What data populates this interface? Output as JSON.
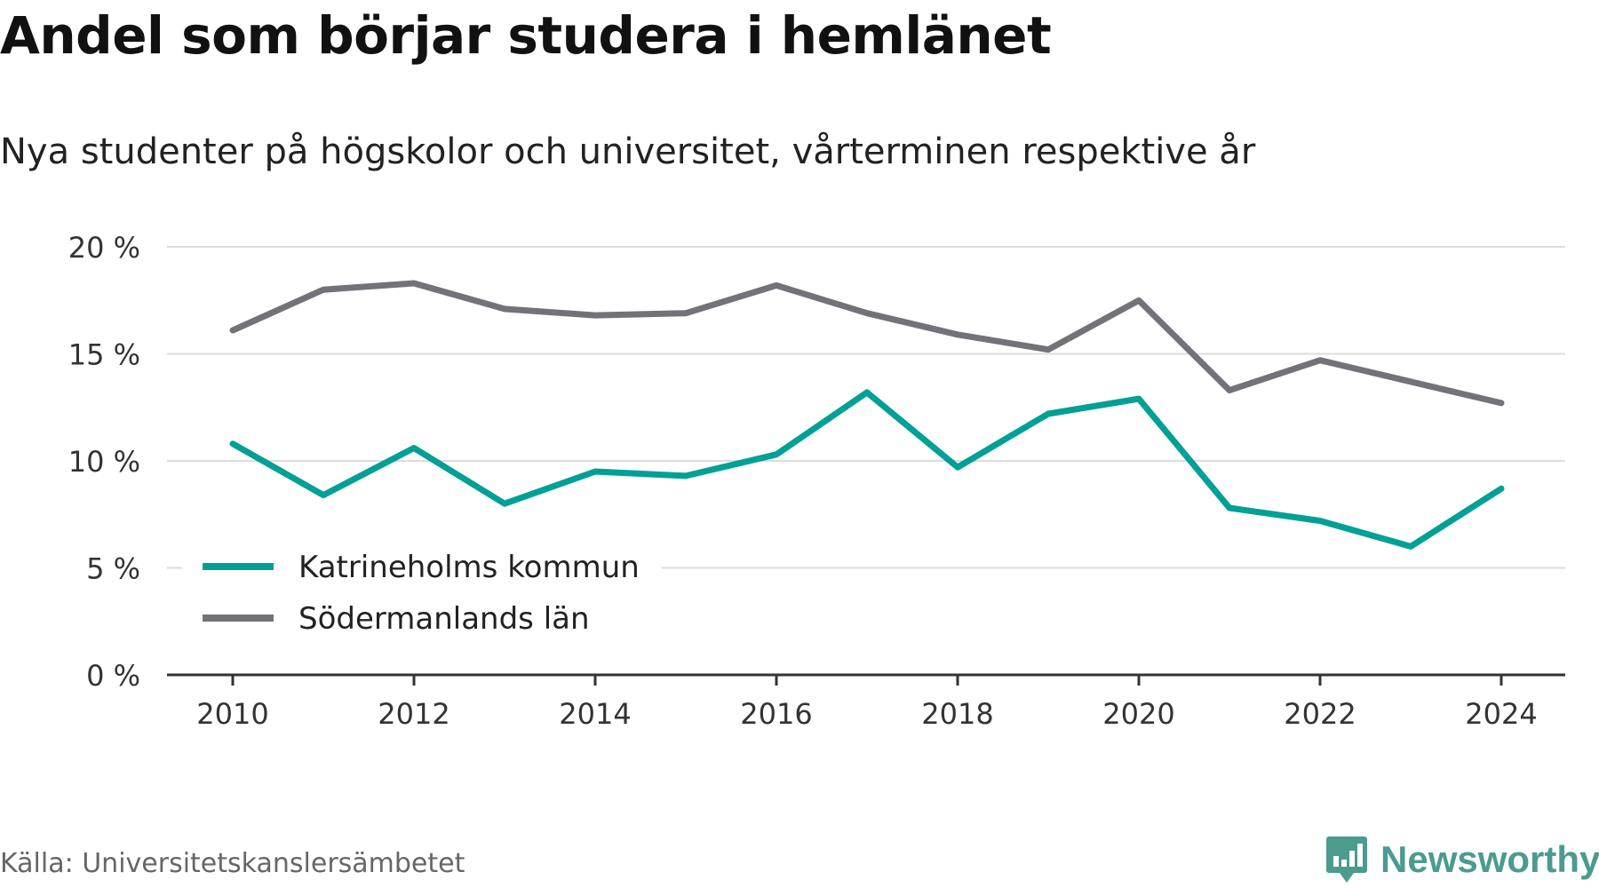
{
  "header": {
    "title": "Andel som börjar studera i hemlänet",
    "subtitle": "Nya studenter på högskolor och universitet, vårterminen respektive år"
  },
  "footer": {
    "source": "Källa: Universitetskanslersämbetet",
    "brand": "Newsworthy",
    "brand_icon": "bar-chart-icon"
  },
  "colors": {
    "katrineholm": "#00a096",
    "sodermanland": "#737278",
    "grid": "#dddddd",
    "axis": "#333333",
    "brand": "#4b9b8f"
  },
  "chart_data": {
    "type": "line",
    "x": [
      2010,
      2011,
      2012,
      2013,
      2014,
      2015,
      2016,
      2017,
      2018,
      2019,
      2020,
      2021,
      2022,
      2023,
      2024
    ],
    "x_tick_labels": [
      "2010",
      "2012",
      "2014",
      "2016",
      "2018",
      "2020",
      "2022",
      "2024"
    ],
    "y_tick_labels": [
      "0 %",
      "5 %",
      "10 %",
      "15 %",
      "20 %"
    ],
    "ylim": [
      0,
      20
    ],
    "grid": true,
    "legend_position": "bottom-left",
    "series": [
      {
        "name": "Katrineholms kommun",
        "key": "katrineholm",
        "values": [
          10.8,
          8.4,
          10.6,
          8.0,
          9.5,
          9.3,
          10.3,
          13.2,
          9.7,
          12.2,
          12.9,
          7.8,
          7.2,
          6.0,
          8.7
        ]
      },
      {
        "name": "Södermanlands län",
        "key": "sodermanland",
        "values": [
          16.1,
          18.0,
          18.3,
          17.1,
          16.8,
          16.9,
          18.2,
          16.9,
          15.9,
          15.2,
          17.5,
          13.3,
          14.7,
          13.7,
          12.7
        ]
      }
    ]
  }
}
